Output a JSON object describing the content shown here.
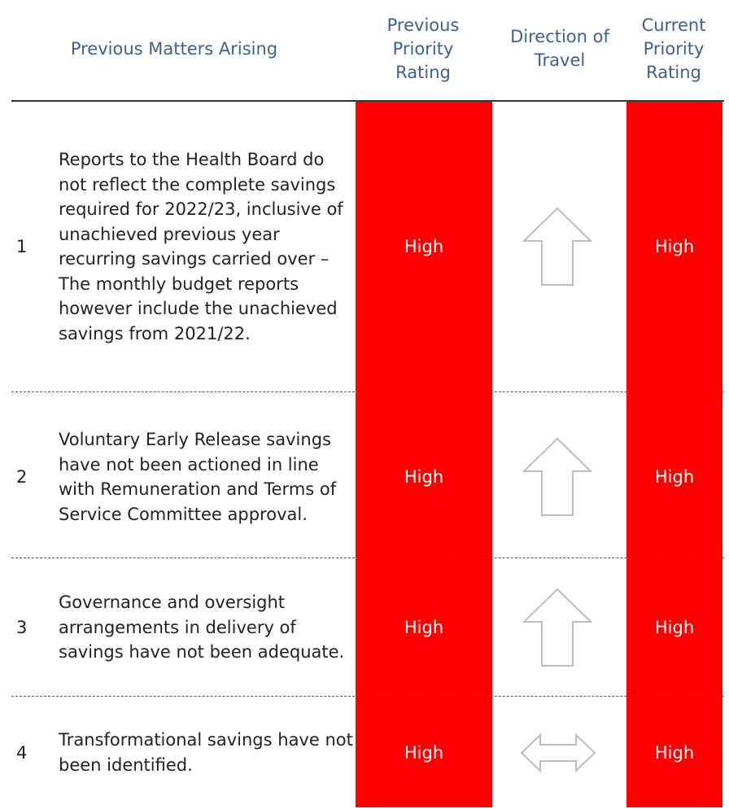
{
  "header": {
    "columns": [
      "Previous Matters Arising",
      "Previous Priority Rating",
      "Direction of Travel",
      "Current Priority Rating"
    ]
  },
  "rows": [
    {
      "number": "1",
      "text": "Reports to the Health Board do not reflect the complete savings required for 2022/23, inclusive of unachieved previous year recurring savings carried over – The monthly budget reports however include the unachieved savings from 2021/22.",
      "previous": "High",
      "current": "High"
    },
    {
      "number": "2",
      "text": "Voluntary Early Release savings have not been actioned in line with Remuneration and Terms of Service Committee approval.",
      "previous": "High",
      "current": "High"
    },
    {
      "number": "3",
      "text": "Governance and oversight arrangements in delivery of savings have not been adequate.",
      "previous": "High",
      "current": "High"
    },
    {
      "number": "4",
      "text": "Transformational savings have not been identified.",
      "previous": "High",
      "current": "High"
    }
  ]
}
